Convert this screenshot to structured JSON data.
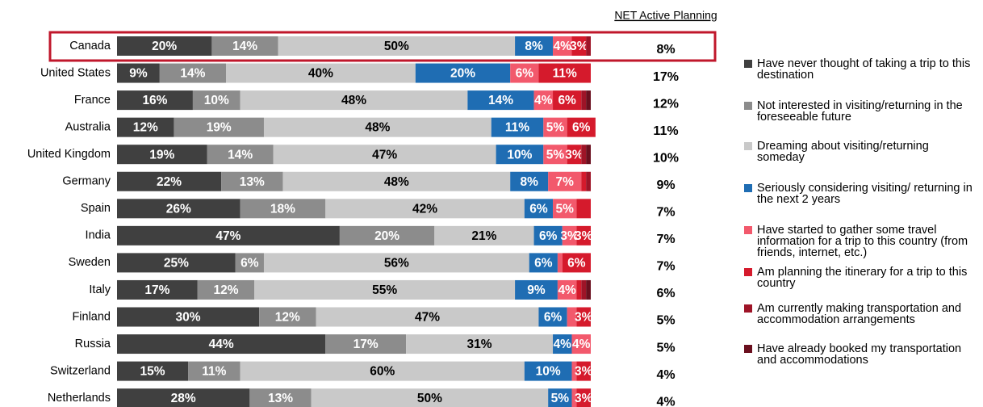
{
  "chart_data": {
    "type": "stacked-bar-horizontal",
    "categories": [
      "Canada",
      "United States",
      "France",
      "Australia",
      "United Kingdom",
      "Germany",
      "Spain",
      "India",
      "Sweden",
      "Italy",
      "Finland",
      "Russia",
      "Switzerland",
      "Netherlands"
    ],
    "xlim": [
      0,
      100
    ],
    "highlight": "Canada",
    "series": [
      {
        "name": "Have never thought of taking a trip to this destination",
        "color": "#404040",
        "values": [
          20,
          9,
          16,
          12,
          19,
          22,
          26,
          47,
          25,
          17,
          30,
          44,
          15,
          28
        ],
        "value_labels": [
          "20%",
          "9%",
          "16%",
          "12%",
          "19%",
          "22%",
          "26%",
          "47%",
          "25%",
          "17%",
          "30%",
          "44%",
          "15%",
          "28%"
        ]
      },
      {
        "name": "Not interested in visiting/returning in the foreseeable future",
        "color": "#8c8c8c",
        "values": [
          14,
          14,
          10,
          19,
          14,
          13,
          18,
          20,
          6,
          12,
          12,
          17,
          11,
          13
        ],
        "value_labels": [
          "14%",
          "14%",
          "10%",
          "19%",
          "14%",
          "13%",
          "18%",
          "20%",
          "6%",
          "12%",
          "12%",
          "17%",
          "11%",
          "13%"
        ]
      },
      {
        "name": "Dreaming about visiting/returning someday",
        "color": "#c9c9c9",
        "values": [
          50,
          40,
          48,
          48,
          47,
          48,
          42,
          21,
          56,
          55,
          47,
          31,
          60,
          50
        ],
        "value_labels": [
          "50%",
          "40%",
          "48%",
          "48%",
          "47%",
          "48%",
          "42%",
          "21%",
          "56%",
          "55%",
          "47%",
          "31%",
          "60%",
          "50%"
        ]
      },
      {
        "name": "Seriously considering visiting/ returning in the next 2 years",
        "color": "#1f6db3",
        "values": [
          8,
          20,
          14,
          11,
          10,
          8,
          6,
          6,
          6,
          9,
          6,
          4,
          10,
          5
        ],
        "value_labels": [
          "8%",
          "20%",
          "14%",
          "11%",
          "10%",
          "8%",
          "6%",
          "6%",
          "6%",
          "9%",
          "6%",
          "4%",
          "10%",
          "5%"
        ]
      },
      {
        "name": "Have started to gather some travel information for a trip to this country (from friends, internet, etc.)",
        "color": "#f2596c",
        "values": [
          4,
          6,
          4,
          5,
          5,
          7,
          5,
          3,
          1,
          4,
          2,
          4,
          1,
          1
        ],
        "value_labels": [
          "4%",
          "6%",
          "4%",
          "5%",
          "5%",
          "7%",
          "5%",
          "3%",
          null,
          "4%",
          null,
          "4%",
          null,
          null
        ]
      },
      {
        "name": "Am planning the itinerary for a trip to this country",
        "color": "#d51a2c",
        "values": [
          3,
          11,
          6,
          6,
          3,
          1,
          3,
          3,
          6,
          1,
          3,
          0,
          3,
          3
        ],
        "value_labels": [
          "3%",
          "11%",
          "6%",
          "6%",
          "3%",
          null,
          null,
          "3%",
          "6%",
          null,
          "3%",
          null,
          "3%",
          "3%"
        ]
      },
      {
        "name": "Am currently making transportation and accommodation arrangements",
        "color": "#9e1427",
        "values": [
          1,
          0,
          1,
          0,
          1,
          1,
          0,
          0,
          0,
          1,
          0,
          0,
          0,
          0
        ],
        "value_labels": [
          null,
          null,
          null,
          null,
          null,
          null,
          null,
          null,
          null,
          null,
          null,
          null,
          null,
          null
        ]
      },
      {
        "name": "Have already booked my transportation and accommodations",
        "color": "#6a0f1e",
        "values": [
          0,
          0,
          1,
          0,
          1,
          0,
          0,
          0,
          0,
          1,
          0,
          0,
          0,
          0
        ],
        "value_labels": [
          null,
          null,
          null,
          null,
          null,
          null,
          null,
          null,
          null,
          null,
          null,
          null,
          null,
          null
        ]
      }
    ],
    "net": {
      "label": "NET Active Planning",
      "values": [
        8,
        17,
        12,
        11,
        10,
        9,
        7,
        7,
        7,
        6,
        5,
        5,
        4,
        4
      ],
      "value_labels": [
        "8%",
        "17%",
        "12%",
        "11%",
        "10%",
        "9%",
        "7%",
        "7%",
        "7%",
        "6%",
        "5%",
        "5%",
        "4%",
        "4%"
      ]
    }
  }
}
